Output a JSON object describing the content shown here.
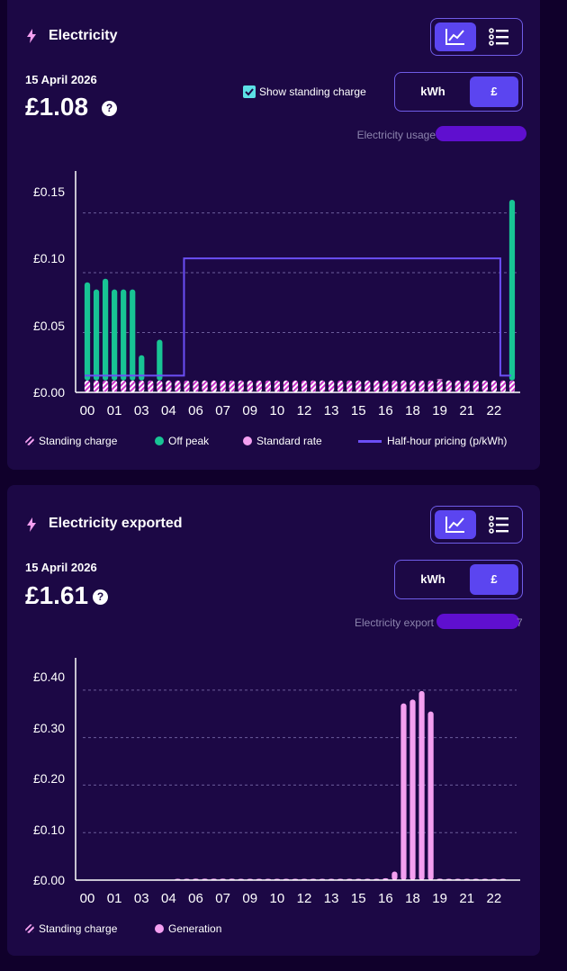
{
  "electricity": {
    "title": "Electricity",
    "date": "15 April 2026",
    "amount": "£1.08",
    "help_glyph": "?",
    "show_standing_charge_label": "Show standing charge",
    "show_standing_charge_checked": true,
    "unit_toggle": {
      "kwh_label": "kWh",
      "gbp_label": "£",
      "selected": "£"
    },
    "view_toggle": {
      "selected": "chart",
      "icons": [
        "line-chart-icon",
        "list-icon"
      ]
    },
    "meter_label": "Electricity usage",
    "legend": [
      {
        "label": "Standing charge",
        "color": "#f49ff0"
      },
      {
        "label": "Off peak",
        "color": "#18c494"
      },
      {
        "label": "Standard rate",
        "color": "#f49ff0"
      },
      {
        "label": "Half-hour pricing (p/kWh)",
        "color": "#6b4ff5"
      }
    ]
  },
  "exported": {
    "title": "Electricity exported",
    "date": "15 April 2026",
    "amount": "£1.61",
    "help_glyph": "?",
    "unit_toggle": {
      "kwh_label": "kWh",
      "gbp_label": "£",
      "selected": "£"
    },
    "view_toggle": {
      "selected": "chart",
      "icons": [
        "line-chart-icon",
        "list-icon"
      ]
    },
    "meter_label": "Electricity export",
    "meter_suffix": "7",
    "legend": [
      {
        "label": "Standing charge",
        "color": "#f49ff0"
      },
      {
        "label": "Generation",
        "color": "#f49ff0"
      }
    ]
  },
  "chart_data": [
    {
      "type": "bar",
      "series": [
        {
          "name": "Standing charge",
          "values": [
            0.01,
            0.01,
            0.01,
            0.01,
            0.01,
            0.01,
            0.01,
            0.01,
            0.01,
            0.01,
            0.01,
            0.01,
            0.01,
            0.01,
            0.01,
            0.01,
            0.01,
            0.01,
            0.01,
            0.01,
            0.01,
            0.01,
            0.01,
            0.01,
            0.01,
            0.01,
            0.01,
            0.01,
            0.01,
            0.01,
            0.01,
            0.01,
            0.01,
            0.01,
            0.01,
            0.01,
            0.01,
            0.01,
            0.01,
            0.01,
            0.01,
            0.01,
            0.01,
            0.01,
            0.01,
            0.01,
            0.01,
            0.01
          ]
        },
        {
          "name": "Off peak",
          "values": [
            0.082,
            0.076,
            0.085,
            0.076,
            0.076,
            0.076,
            0.021,
            0,
            0.034,
            0,
            0,
            0,
            0,
            0,
            0,
            0,
            0,
            0,
            0,
            0,
            0,
            0,
            0,
            0,
            0,
            0,
            0,
            0,
            0,
            0,
            0,
            0,
            0,
            0,
            0,
            0,
            0,
            0,
            0,
            0,
            0,
            0,
            0,
            0,
            0,
            0,
            0,
            0.151
          ]
        },
        {
          "name": "Standard rate",
          "values": [
            0,
            0,
            0,
            0,
            0,
            0,
            0,
            0,
            0,
            0,
            0,
            0,
            0,
            0,
            0,
            0,
            0,
            0,
            0,
            0,
            0,
            0,
            0,
            0,
            0,
            0,
            0,
            0,
            0,
            0,
            0,
            0,
            0,
            0,
            0,
            0,
            0,
            0,
            0,
            0.001,
            0,
            0,
            0,
            0,
            0,
            0,
            0,
            0
          ]
        }
      ],
      "line_series": {
        "name": "Half-hour pricing (p/kWh)",
        "values": [
          0.014,
          0.014,
          0.014,
          0.014,
          0.014,
          0.014,
          0.014,
          0.014,
          0.014,
          0.014,
          0.014,
          0.112,
          0.112,
          0.112,
          0.112,
          0.112,
          0.112,
          0.112,
          0.112,
          0.112,
          0.112,
          0.112,
          0.112,
          0.112,
          0.112,
          0.112,
          0.112,
          0.112,
          0.112,
          0.112,
          0.112,
          0.112,
          0.112,
          0.112,
          0.112,
          0.112,
          0.112,
          0.112,
          0.112,
          0.112,
          0.112,
          0.112,
          0.112,
          0.112,
          0.112,
          0.112,
          0.014,
          0.014
        ]
      },
      "xtick_labels": [
        "00",
        "01",
        "03",
        "04",
        "06",
        "07",
        "09",
        "10",
        "12",
        "13",
        "15",
        "16",
        "18",
        "19",
        "21",
        "22"
      ],
      "yticks": [
        0,
        0.05,
        0.1,
        0.15
      ],
      "ytick_labels": [
        "£0.00",
        "£0.05",
        "£0.10",
        "£0.15"
      ],
      "ylim": [
        0,
        0.17
      ],
      "grid": true
    },
    {
      "type": "bar",
      "series": [
        {
          "name": "Generation",
          "values": [
            0,
            0,
            0,
            0,
            0,
            0,
            0,
            0,
            0,
            0,
            0.002,
            0.002,
            0.003,
            0.003,
            0.003,
            0.003,
            0.003,
            0.002,
            0.002,
            0.002,
            0.002,
            0.002,
            0.002,
            0.002,
            0.002,
            0.002,
            0.002,
            0.002,
            0.002,
            0.002,
            0.002,
            0.002,
            0.002,
            0.004,
            0.018,
            0.372,
            0.38,
            0.398,
            0.355,
            0.003,
            0.002,
            0.002,
            0.002,
            0.002,
            0.002,
            0.002,
            0.002,
            0
          ]
        }
      ],
      "xtick_labels": [
        "00",
        "01",
        "03",
        "04",
        "06",
        "07",
        "09",
        "10",
        "12",
        "13",
        "15",
        "16",
        "18",
        "19",
        "21",
        "22"
      ],
      "yticks": [
        0,
        0.1,
        0.2,
        0.3,
        0.4
      ],
      "ytick_labels": [
        "£0.00",
        "£0.10",
        "£0.20",
        "£0.30",
        "£0.40"
      ],
      "ylim": [
        0,
        0.43
      ],
      "grid": true
    }
  ]
}
